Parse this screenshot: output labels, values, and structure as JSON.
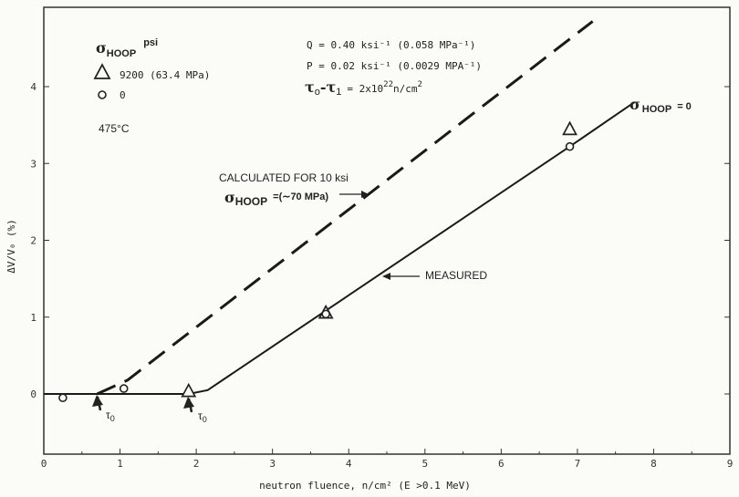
{
  "chart_data": {
    "type": "line",
    "xlabel": "neutron fluence, n/cm² (E >0.1 MeV)",
    "ylabel": "ΔV/V₀ (%)",
    "xlim": [
      0,
      9
    ],
    "ylim": [
      -0.75,
      4.9
    ],
    "x_ticks": [
      "0",
      "1",
      "2",
      "3",
      "4",
      "5",
      "6",
      "7",
      "8",
      "9"
    ],
    "y_ticks": [
      "0",
      "1",
      "2",
      "3",
      "4"
    ],
    "grid": false,
    "series": [
      {
        "name": "σHOOP = 0",
        "style": "solid",
        "x": [
          0,
          1.9,
          2.15,
          6.9,
          7.75
        ],
        "y": [
          0,
          0,
          0.05,
          3.22,
          3.8
        ]
      },
      {
        "name": "CALCULATED FOR 10 ksi",
        "style": "dashed",
        "x": [
          0.7,
          1.1,
          7.2
        ],
        "y": [
          0,
          0.18,
          4.85
        ]
      }
    ],
    "points_triangle": {
      "label": "9200 (63.4 MPa)",
      "x": [
        1.9,
        3.7,
        6.9
      ],
      "y": [
        0.04,
        1.06,
        3.45
      ]
    },
    "points_circle": {
      "label": "0",
      "x": [
        0.25,
        1.05,
        3.7,
        6.9
      ],
      "y": [
        -0.05,
        0.07,
        1.04,
        3.22
      ]
    },
    "legend": {
      "title": "σ",
      "title_sub": "HOOP",
      "title_unit": "psi",
      "temp": "475°C"
    },
    "params": {
      "q": "Q = 0.40 ksi⁻¹ (0.058 MPa⁻¹)",
      "p": "P = 0.02 ksi⁻¹ (0.0029 MPA⁻¹)",
      "tau_a": "τ",
      "tau_a_sub": "o",
      "tau_b": "-τ",
      "tau_b_sub": "1",
      "tau_val": "= 2x10",
      "tau_exp": "22",
      "tau_unit": "n/cm",
      "tau_unit_exp": "2"
    },
    "annotations": {
      "solid_label_sym": "σ",
      "solid_label_sub": "HOOP",
      "solid_label_val": "= 0",
      "calc_line1": "CALCULATED FOR 10 ksi",
      "calc_sym": "σ",
      "calc_sub": "HOOP",
      "calc_val": "=(∼70 MPa)",
      "measured": "MEASURED",
      "tau1": "τ",
      "tau1_sub": "0",
      "tau2": "τ",
      "tau2_sub": "0"
    }
  }
}
